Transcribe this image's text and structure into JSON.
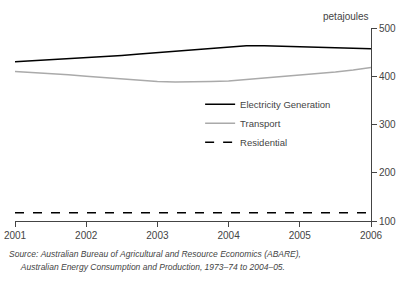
{
  "chart_data": {
    "type": "line",
    "ylabel": "petajoules",
    "xlim": [
      2001,
      2006
    ],
    "ylim": [
      100,
      500
    ],
    "xticks": [
      2001,
      2002,
      2003,
      2004,
      2005,
      2006
    ],
    "yticks": [
      100,
      200,
      300,
      400,
      500
    ],
    "grid": false,
    "legend": "right",
    "series": [
      {
        "name": "Electricity Generation",
        "color": "#000000",
        "line_style": "solid",
        "x": [
          2001,
          2001.25,
          2001.5,
          2001.75,
          2002,
          2002.25,
          2002.5,
          2002.75,
          2003,
          2003.25,
          2003.5,
          2003.75,
          2004,
          2004.25,
          2004.5,
          2004.75,
          2005,
          2005.25,
          2005.5,
          2005.75,
          2006
        ],
        "values": [
          430,
          432,
          434,
          436,
          438,
          440,
          443,
          446,
          449,
          452,
          455,
          458,
          461,
          463,
          463,
          462,
          460,
          459,
          458,
          458,
          457
        ]
      },
      {
        "name": "Transport",
        "color": "#aaaaaa",
        "line_style": "solid",
        "x": [
          2001,
          2001.25,
          2001.5,
          2001.75,
          2002,
          2002.25,
          2002.5,
          2002.75,
          2003,
          2003.25,
          2003.5,
          2003.75,
          2004,
          2004.25,
          2004.5,
          2004.75,
          2005,
          2005.25,
          2005.5,
          2005.75,
          2006
        ],
        "values": [
          410,
          408,
          406,
          403,
          400,
          397,
          394,
          391,
          389,
          388,
          388,
          389,
          390,
          393,
          396,
          399,
          402,
          406,
          409,
          413,
          418
        ]
      },
      {
        "name": "Residential",
        "color": "#000000",
        "line_style": "dashed",
        "x": [
          2001,
          2006
        ],
        "values": [
          117,
          117
        ]
      }
    ],
    "annotations": [
      "Source: Australian Bureau of Agricultural and Resource Economics (ABARE),",
      "     Australian Energy Consumption and Production, 1973–74 to 2004–05."
    ]
  }
}
